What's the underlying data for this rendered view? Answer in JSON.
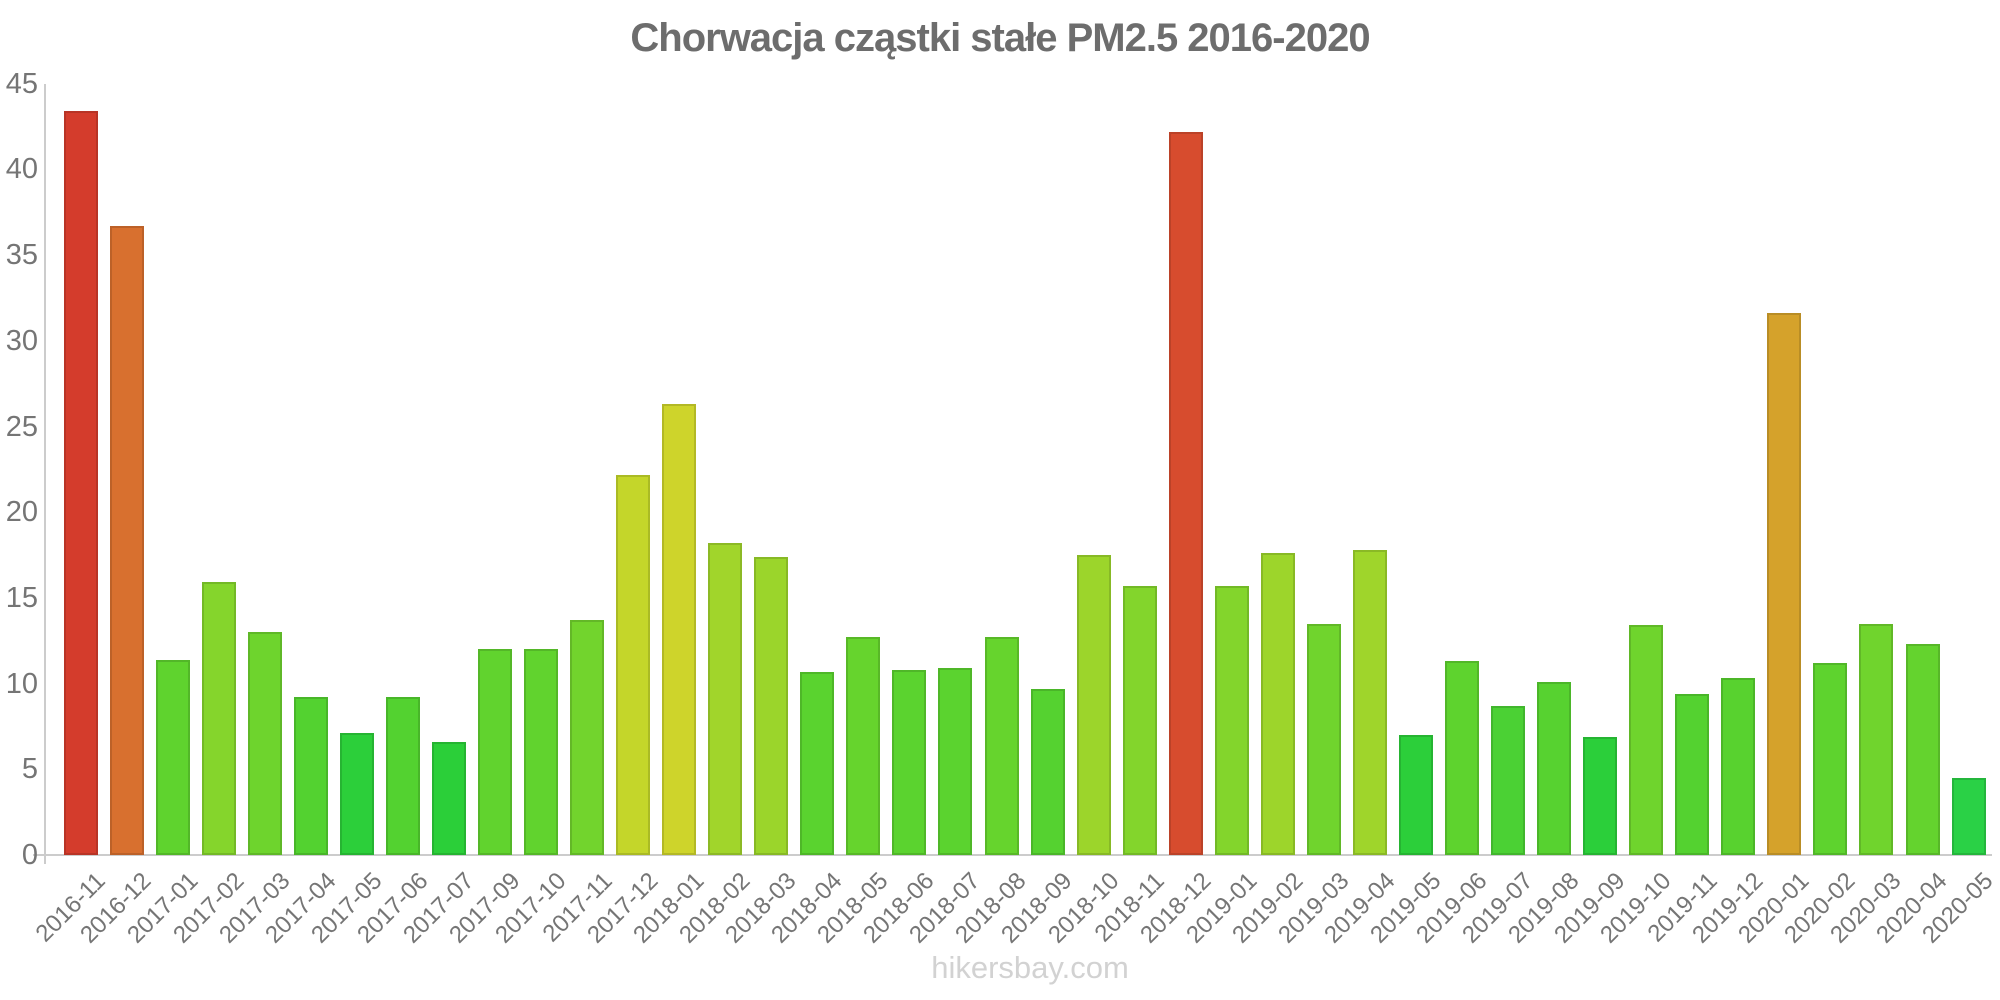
{
  "header": {
    "title": "Chorwacja cząstki stałe PM2.5 2016-2020"
  },
  "watermark": {
    "text": "hikersbay.com"
  },
  "colors": {
    "background": "#ffffff",
    "title": "#6d6d6d",
    "axis_label": "#757575",
    "axis_line": "#cccccc",
    "watermark": "#d2d2d2"
  },
  "axes": {
    "y_ticks": [
      45,
      40,
      35,
      30,
      25,
      20,
      15,
      10,
      5,
      0
    ]
  },
  "chart_data": {
    "type": "bar",
    "title": "Chorwacja cząstki stałe PM2.5 2016-2020",
    "xlabel": "",
    "ylabel": "",
    "ylim": [
      0,
      45
    ],
    "grid": false,
    "legend": null,
    "x_tick_rotation": -45,
    "categories": [
      "2016-11",
      "2016-12",
      "2017-01",
      "2017-02",
      "2017-03",
      "2017-04",
      "2017-05",
      "2017-06",
      "2017-07",
      "2017-09",
      "2017-10",
      "2017-11",
      "2017-12",
      "2018-01",
      "2018-02",
      "2018-03",
      "2018-04",
      "2018-05",
      "2018-06",
      "2018-07",
      "2018-08",
      "2018-09",
      "2018-10",
      "2018-11",
      "2018-12",
      "2019-01",
      "2019-02",
      "2019-03",
      "2019-04",
      "2019-05",
      "2019-06",
      "2019-07",
      "2019-08",
      "2019-09",
      "2019-10",
      "2019-11",
      "2019-12",
      "2020-01",
      "2020-02",
      "2020-03",
      "2020-04",
      "2020-05"
    ],
    "values": [
      43.4,
      36.7,
      11.4,
      15.9,
      13.0,
      9.2,
      7.1,
      9.2,
      6.6,
      12.0,
      12.0,
      13.7,
      22.2,
      26.3,
      18.2,
      17.4,
      10.7,
      12.7,
      10.8,
      10.9,
      12.7,
      9.7,
      17.5,
      15.7,
      42.2,
      15.7,
      17.6,
      13.5,
      17.8,
      7.0,
      11.3,
      8.7,
      10.1,
      6.9,
      13.4,
      9.4,
      10.3,
      31.6,
      11.2,
      13.5,
      12.3,
      4.5
    ],
    "bar_colors": [
      "#d43c2c",
      "#d8702f",
      "#5fd32e",
      "#85d52c",
      "#6ed42d",
      "#53d230",
      "#2ccf3a",
      "#53d230",
      "#2bcf39",
      "#61d32e",
      "#61d32e",
      "#72d42d",
      "#c4d62a",
      "#ced42b",
      "#a1d52b",
      "#9bd52b",
      "#5ad32f",
      "#66d42d",
      "#5bd32f",
      "#5bd32f",
      "#66d42d",
      "#55d230",
      "#9cd52b",
      "#83d52c",
      "#d74c2e",
      "#83d52c",
      "#9dd52b",
      "#70d42d",
      "#9fd52b",
      "#2ccf3a",
      "#5ed32e",
      "#4bd134",
      "#57d230",
      "#2bcf3a",
      "#6fd42d",
      "#54d230",
      "#58d22f",
      "#d5a22b",
      "#5ed32e",
      "#70d42d",
      "#64d32e",
      "#2ad146"
    ]
  }
}
